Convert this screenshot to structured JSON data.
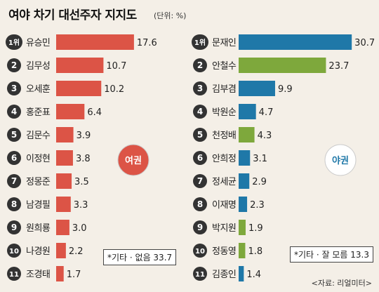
{
  "title": "여야 차기 대선주자 지지도",
  "unit": "(단위: %)",
  "chart_data": [
    {
      "type": "bar",
      "orientation": "horizontal",
      "badge": "여권",
      "ranks": [
        "1위",
        "2",
        "3",
        "4",
        "5",
        "6",
        "7",
        "8",
        "9",
        "10",
        "11"
      ],
      "categories": [
        "유승민",
        "김무성",
        "오세훈",
        "홍준표",
        "김문수",
        "이정현",
        "정몽준",
        "남경필",
        "원희룡",
        "나경원",
        "조경태"
      ],
      "values": [
        17.6,
        10.7,
        10.2,
        6.4,
        3.9,
        3.8,
        3.5,
        3.3,
        3.0,
        2.2,
        1.7
      ],
      "value_labels": [
        "17.6",
        "10.7",
        "10.2",
        "6.4",
        "3.9",
        "3.8",
        "3.5",
        "3.3",
        "3.0",
        "2.2",
        "1.7"
      ],
      "colors": [
        "#dc5446",
        "#dc5446",
        "#dc5446",
        "#dc5446",
        "#dc5446",
        "#dc5446",
        "#dc5446",
        "#dc5446",
        "#dc5446",
        "#dc5446",
        "#dc5446"
      ],
      "note": "*기타 · 없음 33.7"
    },
    {
      "type": "bar",
      "orientation": "horizontal",
      "badge": "야권",
      "ranks": [
        "1위",
        "2",
        "3",
        "4",
        "5",
        "6",
        "7",
        "8",
        "9",
        "10",
        "11"
      ],
      "categories": [
        "문재인",
        "안철수",
        "김부겸",
        "박원순",
        "천정배",
        "안희정",
        "정세균",
        "이재명",
        "박지원",
        "정동영",
        "김종인"
      ],
      "values": [
        30.7,
        23.7,
        9.9,
        4.7,
        4.3,
        3.1,
        2.9,
        2.3,
        1.9,
        1.8,
        1.4
      ],
      "value_labels": [
        "30.7",
        "23.7",
        "9.9",
        "4.7",
        "4.3",
        "3.1",
        "2.9",
        "2.3",
        "1.9",
        "1.8",
        "1.4"
      ],
      "colors": [
        "#1f78a8",
        "#7ea83c",
        "#1f78a8",
        "#1f78a8",
        "#7ea83c",
        "#1f78a8",
        "#1f78a8",
        "#1f78a8",
        "#7ea83c",
        "#7ea83c",
        "#1f78a8"
      ],
      "note": "*기타 · 잘 모름 13.3"
    }
  ],
  "source": "<자료: 리얼미터>"
}
